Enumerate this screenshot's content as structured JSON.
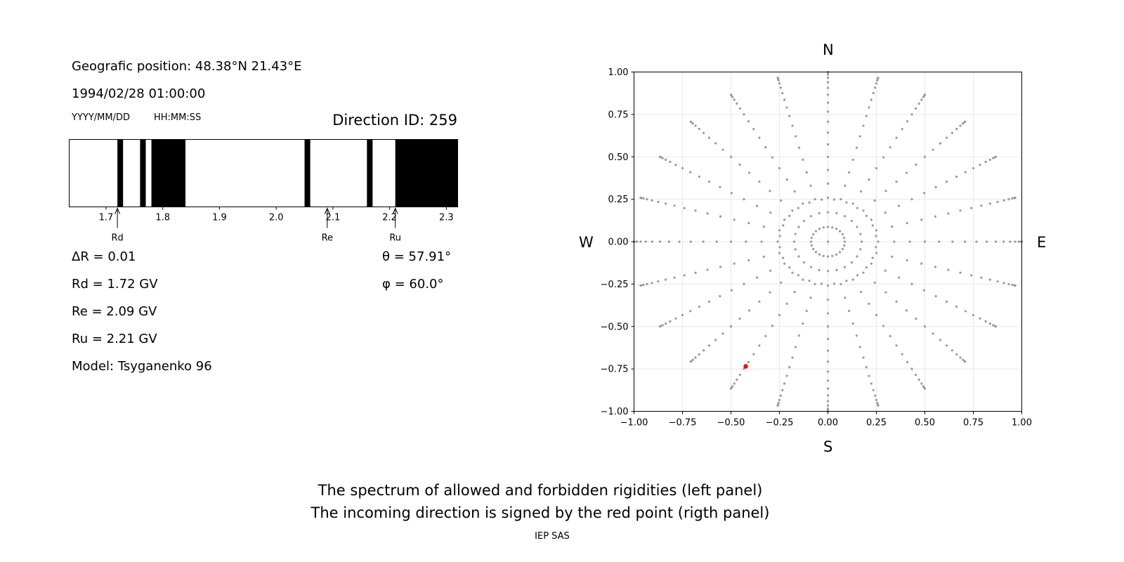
{
  "info": {
    "position": "Geografic position: 48.38°N 21.43°E",
    "datetime": "1994/02/28 01:00:00",
    "date_format": "YYYY/MM/DD",
    "time_format": "HH:MM:SS",
    "direction": "Direction ID: 259",
    "delta_r": "ΔR = 0.01",
    "rd": "Rd = 1.72 GV",
    "re": "Re = 2.09 GV",
    "ru": "Ru = 2.21 GV",
    "model": "Model: Tsyganenko 96",
    "theta": "θ = 57.91°",
    "phi": "φ = 60.0°"
  },
  "caption": {
    "line1": "The spectrum of allowed and forbidden rigidities (left panel)",
    "line2": "The incoming direction is signed by the red point (rigth panel)",
    "credit": "IEP SAS"
  },
  "compass": {
    "n": "N",
    "s": "S",
    "w": "W",
    "e": "E"
  },
  "colors": {
    "forbidden": "#000000",
    "grid_point": "#999999",
    "highlight": "#ff0000"
  },
  "chart_data": [
    {
      "type": "bar",
      "description_key": "rigidity spectrum",
      "xlim": [
        1.635,
        2.32
      ],
      "xticks": [
        1.7,
        1.8,
        1.9,
        2.0,
        2.1,
        2.2,
        2.3
      ],
      "xtick_labels": [
        "1.7",
        "1.8",
        "1.9",
        "2.0",
        "2.1",
        "2.2",
        "2.3"
      ],
      "forbidden_bands": [
        [
          1.72,
          1.73
        ],
        [
          1.76,
          1.77
        ],
        [
          1.78,
          1.84
        ],
        [
          2.05,
          2.06
        ],
        [
          2.16,
          2.17
        ],
        [
          2.21,
          2.32
        ]
      ],
      "markers": [
        {
          "label": "Rd",
          "value": 1.72
        },
        {
          "label": "Re",
          "value": 2.09
        },
        {
          "label": "Ru",
          "value": 2.21
        }
      ]
    },
    {
      "type": "scatter",
      "xlim": [
        -1.0,
        1.0
      ],
      "ylim": [
        -1.0,
        1.0
      ],
      "xticks": [
        -1.0,
        -0.75,
        -0.5,
        -0.25,
        0.0,
        0.25,
        0.5,
        0.75,
        1.0
      ],
      "yticks": [
        -1.0,
        -0.75,
        -0.5,
        -0.25,
        0.0,
        0.25,
        0.5,
        0.75,
        1.0
      ],
      "xtick_labels": [
        "−1.00",
        "−0.75",
        "−0.50",
        "−0.25",
        "0.00",
        "0.25",
        "0.50",
        "0.75",
        "1.00"
      ],
      "ytick_labels": [
        "−1.00",
        "−0.75",
        "−0.50",
        "−0.25",
        "0.00",
        "0.25",
        "0.50",
        "0.75",
        "1.00"
      ],
      "grid": true,
      "direction_grid": {
        "azimuth_step_deg": 15,
        "zenith_step_deg": 5,
        "zenith_max_deg": 90
      },
      "highlight_point": {
        "x": -0.424,
        "y": -0.735
      }
    }
  ]
}
